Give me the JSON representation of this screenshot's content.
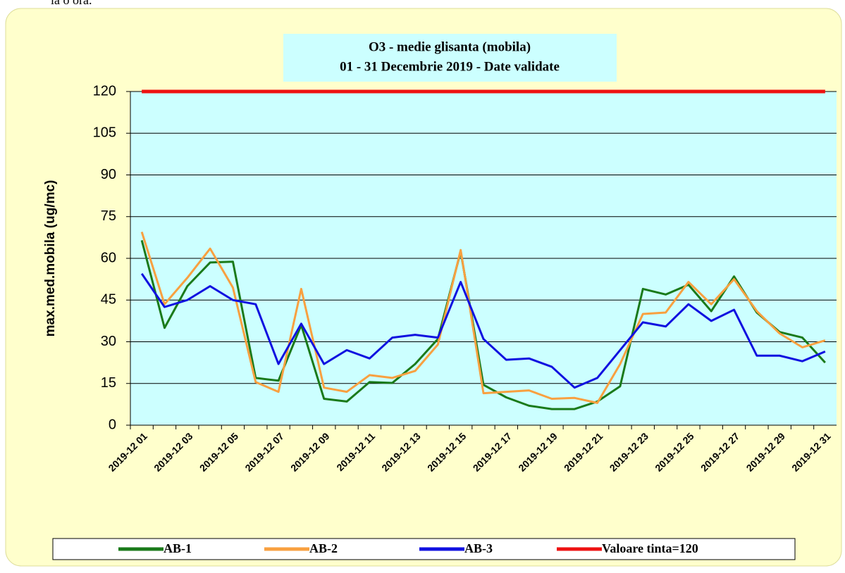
{
  "top_text": "la o ora.",
  "chart_data": {
    "type": "line",
    "title": [
      "O3 - medie glisanta (mobila)",
      "01 - 31 Decembrie  2019 -  Date validate"
    ],
    "y_label": "max.med.mobila (ug/mc)",
    "categories": [
      "2019-12 01",
      null,
      "2019-12 03",
      null,
      "2019-12 05",
      null,
      "2019-12 07",
      null,
      "2019-12 09",
      null,
      "2019-12 11",
      null,
      "2019-12 13",
      null,
      "2019-12 15",
      null,
      "2019-12 17",
      null,
      "2019-12 19",
      null,
      "2019-12 21",
      null,
      "2019-12 23",
      null,
      "2019-12 25",
      null,
      "2019-12 27",
      null,
      "2019-12 29",
      null,
      "2019-12 31"
    ],
    "series": [
      {
        "name": "AB-1",
        "color": "#1a7a1a",
        "values": [
          66.5,
          35,
          50,
          58.5,
          58.8,
          17,
          16,
          36,
          9.5,
          8.5,
          15.5,
          15.2,
          22,
          31,
          62.5,
          14.5,
          10,
          7,
          5.8,
          5.8,
          8.5,
          14,
          49,
          47,
          50.5,
          41,
          53.5,
          40.5,
          33.5,
          31.5,
          22.5
        ]
      },
      {
        "name": "AB-2",
        "color": "#f8a040",
        "values": [
          69.5,
          43.5,
          53,
          63.5,
          49.5,
          15.5,
          12,
          49,
          13.5,
          12,
          18,
          17,
          19.5,
          29,
          63,
          11.5,
          12,
          12.5,
          9.5,
          9.8,
          8,
          22,
          40,
          40.5,
          51.5,
          43.5,
          52.5,
          41,
          33,
          28,
          30.5
        ]
      },
      {
        "name": "AB-3",
        "color": "#1010e0",
        "values": [
          54.5,
          42.5,
          45,
          50,
          45,
          43.5,
          22,
          36.5,
          22,
          27,
          24,
          31.5,
          32.5,
          31.5,
          51.5,
          31,
          23.5,
          24,
          21,
          13.5,
          17,
          27,
          37,
          35.5,
          43.5,
          37.5,
          41.5,
          25,
          25,
          23,
          26.5
        ]
      },
      {
        "name": "Valoare tinta=120",
        "color": "#ee1111",
        "values": [
          120,
          120,
          120,
          120,
          120,
          120,
          120,
          120,
          120,
          120,
          120,
          120,
          120,
          120,
          120,
          120,
          120,
          120,
          120,
          120,
          120,
          120,
          120,
          120,
          120,
          120,
          120,
          120,
          120,
          120,
          120
        ]
      }
    ],
    "ylim": [
      0,
      120
    ],
    "yticks": [
      0,
      15,
      30,
      45,
      60,
      75,
      90,
      105,
      120
    ],
    "grid": true
  }
}
